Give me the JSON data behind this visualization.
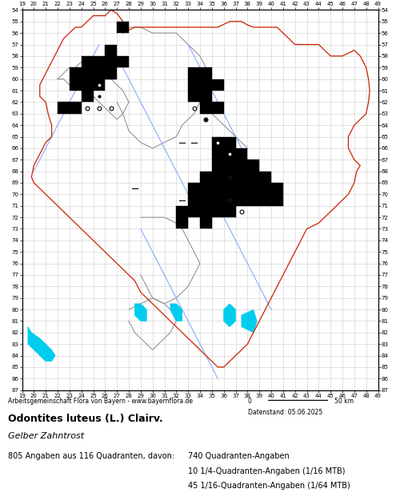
{
  "title_species": "Odontites luteus (L.) Clairv.",
  "title_german": "Gelber Zahntrost",
  "subtitle": "Arbeitsgemeinschaft Flora von Bayern - www.bayernflora.de",
  "date_label": "Datenstand: 05.06.2025",
  "stats_line": "805 Angaben aus 116 Quadranten, davon:",
  "stats_detail": [
    "740 Quadranten-Angaben",
    "10 1/4-Quadranten-Angaben (1/16 MTB)",
    "45 1/16-Quadranten-Angaben (1/64 MTB)"
  ],
  "x_ticks": [
    19,
    20,
    21,
    22,
    23,
    24,
    25,
    26,
    27,
    28,
    29,
    30,
    31,
    32,
    33,
    34,
    35,
    36,
    37,
    38,
    39,
    40,
    41,
    42,
    43,
    44,
    45,
    46,
    47,
    48,
    49
  ],
  "y_ticks": [
    54,
    55,
    56,
    57,
    58,
    59,
    60,
    61,
    62,
    63,
    64,
    65,
    66,
    67,
    68,
    69,
    70,
    71,
    72,
    73,
    74,
    75,
    76,
    77,
    78,
    79,
    80,
    81,
    82,
    83,
    84,
    85,
    86,
    87
  ],
  "xlim": [
    19,
    49
  ],
  "ylim": [
    54,
    87
  ],
  "filled_squares": [
    [
      27,
      55
    ],
    [
      26,
      57
    ],
    [
      24,
      58
    ],
    [
      25,
      58
    ],
    [
      26,
      58
    ],
    [
      27,
      58
    ],
    [
      23,
      59
    ],
    [
      24,
      59
    ],
    [
      25,
      59
    ],
    [
      26,
      59
    ],
    [
      23,
      60
    ],
    [
      24,
      60
    ],
    [
      25,
      60
    ],
    [
      24,
      61
    ],
    [
      22,
      62
    ],
    [
      23,
      62
    ],
    [
      33,
      59
    ],
    [
      34,
      59
    ],
    [
      33,
      60
    ],
    [
      34,
      60
    ],
    [
      35,
      60
    ],
    [
      33,
      61
    ],
    [
      34,
      61
    ],
    [
      34,
      62
    ],
    [
      35,
      62
    ],
    [
      35,
      65
    ],
    [
      36,
      65
    ],
    [
      35,
      66
    ],
    [
      36,
      66
    ],
    [
      37,
      66
    ],
    [
      35,
      67
    ],
    [
      36,
      67
    ],
    [
      37,
      67
    ],
    [
      38,
      67
    ],
    [
      34,
      68
    ],
    [
      35,
      68
    ],
    [
      36,
      68
    ],
    [
      37,
      68
    ],
    [
      38,
      68
    ],
    [
      39,
      68
    ],
    [
      33,
      69
    ],
    [
      34,
      69
    ],
    [
      35,
      69
    ],
    [
      36,
      69
    ],
    [
      37,
      69
    ],
    [
      38,
      69
    ],
    [
      39,
      69
    ],
    [
      40,
      69
    ],
    [
      33,
      70
    ],
    [
      34,
      70
    ],
    [
      35,
      70
    ],
    [
      36,
      70
    ],
    [
      37,
      70
    ],
    [
      38,
      70
    ],
    [
      39,
      70
    ],
    [
      40,
      70
    ],
    [
      32,
      71
    ],
    [
      33,
      71
    ],
    [
      34,
      71
    ],
    [
      35,
      71
    ],
    [
      36,
      71
    ],
    [
      32,
      72
    ],
    [
      34,
      72
    ]
  ],
  "open_circles": [
    [
      25,
      60
    ],
    [
      24,
      62
    ],
    [
      25,
      62
    ],
    [
      26,
      62
    ],
    [
      33,
      62
    ],
    [
      34,
      63
    ],
    [
      35,
      65
    ],
    [
      36,
      66
    ],
    [
      36,
      68
    ],
    [
      36,
      70
    ],
    [
      37,
      71
    ]
  ],
  "filled_circles": [
    [
      25,
      61
    ],
    [
      34,
      63
    ],
    [
      35,
      66
    ],
    [
      37,
      66
    ],
    [
      36,
      68
    ],
    [
      33,
      70
    ],
    [
      36,
      70
    ],
    [
      33,
      71
    ],
    [
      35,
      71
    ],
    [
      32,
      72
    ]
  ],
  "dash_marks": [
    [
      32,
      65
    ],
    [
      33,
      65
    ],
    [
      28,
      69
    ],
    [
      32,
      70
    ]
  ],
  "bavaria_outer": {
    "x": [
      26.0,
      26.5,
      27.0,
      27.5,
      27.0,
      27.5,
      28.5,
      29.5,
      30.5,
      31.5,
      32.0,
      33.0,
      34.0,
      35.5,
      36.5,
      37.5,
      38.0,
      38.5,
      39.0,
      39.5,
      40.5,
      41.0,
      41.5,
      42.0,
      43.0,
      44.0,
      44.5,
      45.0,
      46.0,
      47.0,
      47.5,
      48.0,
      48.2,
      48.3,
      48.2,
      48.0,
      47.5,
      47.0,
      46.5,
      46.5,
      47.0,
      47.5,
      47.2,
      47.0,
      46.5,
      45.5,
      44.5,
      44.0,
      43.0,
      42.5,
      42.0,
      41.5,
      41.0,
      40.5,
      40.0,
      39.5,
      39.0,
      38.5,
      38.0,
      37.5,
      37.0,
      36.5,
      36.0,
      35.5,
      35.0,
      34.5,
      34.0,
      33.5,
      33.0,
      32.5,
      32.0,
      31.5,
      31.0,
      30.5,
      30.0,
      29.5,
      29.0,
      28.5,
      28.0,
      27.5,
      27.0,
      26.5,
      26.0,
      25.5,
      25.0,
      24.5,
      24.0,
      23.5,
      23.0,
      22.5,
      22.0,
      21.5,
      21.0,
      20.5,
      20.0,
      19.8,
      20.0,
      20.5,
      21.0,
      21.5,
      21.5,
      21.2,
      21.0,
      20.5,
      20.5,
      21.0,
      21.5,
      22.0,
      22.5,
      23.0,
      23.5,
      24.0,
      24.5,
      25.0,
      25.5,
      26.0
    ],
    "y": [
      54.5,
      54.0,
      54.3,
      55.0,
      55.5,
      56.0,
      55.5,
      55.5,
      55.5,
      55.5,
      55.5,
      55.5,
      55.5,
      55.5,
      55.0,
      55.0,
      55.3,
      55.5,
      55.5,
      55.5,
      55.5,
      56.0,
      56.5,
      57.0,
      57.0,
      57.0,
      57.5,
      58.0,
      58.0,
      57.5,
      58.0,
      59.0,
      60.0,
      61.0,
      62.0,
      63.0,
      63.5,
      64.0,
      65.0,
      66.0,
      67.0,
      67.5,
      68.0,
      69.0,
      70.0,
      71.0,
      72.0,
      72.5,
      73.0,
      74.0,
      75.0,
      76.0,
      77.0,
      78.0,
      79.0,
      80.0,
      81.0,
      82.0,
      83.0,
      83.5,
      84.0,
      84.5,
      85.0,
      85.0,
      84.5,
      84.0,
      83.5,
      83.0,
      82.5,
      82.0,
      81.5,
      81.0,
      80.5,
      80.0,
      79.5,
      79.0,
      78.5,
      77.5,
      77.0,
      76.5,
      76.0,
      75.5,
      75.0,
      74.5,
      74.0,
      73.5,
      73.0,
      72.5,
      72.0,
      71.5,
      71.0,
      70.5,
      70.0,
      69.5,
      69.0,
      68.5,
      67.5,
      66.5,
      65.5,
      65.0,
      64.0,
      63.0,
      62.0,
      61.5,
      60.5,
      59.5,
      58.5,
      57.5,
      56.5,
      56.0,
      55.5,
      55.5,
      55.0,
      54.5,
      54.5,
      54.5
    ]
  },
  "bavaria_inner": {
    "districts": [
      {
        "x": [
          22.0,
          22.5,
          23.0,
          23.5,
          24.0,
          24.5,
          25.0,
          25.5,
          26.0,
          26.5,
          27.0,
          27.5,
          28.0,
          27.5,
          27.0,
          26.5,
          26.0,
          25.5,
          25.0,
          24.5,
          24.0,
          23.5,
          23.0,
          22.5,
          22.0
        ],
        "y": [
          60.0,
          59.5,
          59.0,
          59.0,
          58.5,
          58.5,
          59.0,
          59.5,
          59.5,
          60.0,
          60.5,
          61.0,
          62.0,
          63.0,
          63.5,
          63.0,
          62.5,
          62.0,
          61.5,
          61.0,
          60.5,
          61.0,
          60.5,
          60.0,
          60.0
        ]
      },
      {
        "x": [
          27.0,
          27.5,
          28.0,
          29.0,
          30.0,
          31.0,
          32.0,
          32.5,
          33.0,
          33.5,
          34.0,
          34.5,
          35.0,
          34.5,
          34.0,
          33.5,
          33.0,
          32.5,
          32.0,
          31.0,
          30.0,
          29.0,
          28.0,
          27.5,
          27.0
        ],
        "y": [
          56.0,
          55.5,
          55.5,
          55.5,
          56.0,
          56.0,
          56.0,
          56.5,
          57.0,
          57.5,
          58.0,
          59.0,
          60.0,
          61.0,
          62.0,
          63.0,
          63.5,
          64.0,
          65.0,
          65.5,
          66.0,
          65.5,
          64.5,
          63.0,
          62.0
        ]
      },
      {
        "x": [
          34.0,
          34.5,
          35.0,
          35.5,
          36.0,
          36.5,
          37.0,
          37.5,
          38.0,
          37.5,
          37.0,
          36.5,
          36.0,
          35.5,
          35.0,
          34.5,
          34.0
        ],
        "y": [
          63.0,
          63.0,
          63.0,
          63.5,
          64.0,
          64.5,
          65.0,
          65.5,
          66.0,
          67.0,
          68.0,
          69.0,
          70.0,
          71.0,
          72.0,
          71.5,
          70.0
        ]
      },
      {
        "x": [
          29.0,
          30.0,
          31.0,
          32.0,
          32.5,
          33.0,
          33.5,
          34.0,
          33.5,
          33.0,
          32.0,
          31.0,
          30.0,
          29.5,
          29.0
        ],
        "y": [
          72.0,
          72.0,
          72.0,
          72.5,
          73.0,
          74.0,
          75.0,
          76.0,
          77.0,
          78.0,
          79.0,
          79.5,
          79.0,
          78.0,
          77.0
        ]
      },
      {
        "x": [
          28.0,
          29.0,
          30.0,
          31.0,
          31.5,
          32.0,
          31.5,
          31.0,
          30.5,
          30.0,
          29.5,
          29.0,
          28.5,
          28.0
        ],
        "y": [
          80.0,
          79.5,
          79.0,
          79.5,
          80.0,
          81.0,
          82.0,
          82.5,
          83.0,
          83.5,
          83.0,
          82.5,
          82.0,
          81.0
        ]
      }
    ]
  },
  "rivers": [
    {
      "x": [
        25.5,
        25.0,
        24.5,
        24.0,
        23.5,
        23.0,
        22.5,
        22.0,
        21.5,
        21.0,
        20.5,
        20.0
      ],
      "y": [
        57.0,
        58.0,
        59.0,
        60.0,
        61.0,
        62.0,
        63.0,
        64.0,
        65.0,
        66.0,
        67.0,
        68.0
      ]
    },
    {
      "x": [
        26.5,
        27.0,
        27.5,
        28.0,
        28.5,
        29.0,
        29.5,
        30.0,
        30.5,
        31.0,
        31.5,
        32.0,
        32.5,
        33.0
      ],
      "y": [
        57.5,
        58.0,
        59.0,
        60.0,
        61.0,
        62.0,
        63.0,
        64.0,
        65.0,
        66.0,
        67.0,
        68.0,
        69.0,
        70.0
      ]
    },
    {
      "x": [
        33.0,
        33.5,
        34.0,
        34.5,
        35.0,
        35.5,
        36.0,
        36.5,
        37.0,
        37.5,
        38.0,
        38.5,
        39.0
      ],
      "y": [
        57.0,
        58.0,
        59.0,
        60.0,
        61.0,
        62.0,
        63.0,
        64.0,
        65.0,
        66.0,
        67.0,
        68.0,
        69.0
      ]
    },
    {
      "x": [
        29.0,
        29.5,
        30.0,
        30.5,
        31.0,
        31.5,
        32.0,
        32.5,
        33.0,
        33.5,
        34.0,
        34.5,
        35.0,
        35.5
      ],
      "y": [
        73.0,
        74.0,
        75.0,
        76.0,
        77.0,
        78.0,
        79.0,
        80.0,
        81.0,
        82.0,
        83.0,
        84.0,
        85.0,
        86.0
      ]
    },
    {
      "x": [
        36.0,
        36.5,
        37.0,
        37.5,
        38.0,
        38.5,
        39.0,
        39.5,
        40.0
      ],
      "y": [
        72.0,
        73.0,
        74.0,
        75.0,
        76.0,
        77.0,
        78.0,
        79.0,
        80.0
      ]
    }
  ],
  "lakes": [
    {
      "x": [
        19.5,
        19.8,
        20.5,
        21.0,
        21.5,
        21.8,
        21.5,
        21.0,
        20.5,
        20.0,
        19.5
      ],
      "y": [
        81.5,
        82.0,
        82.5,
        83.0,
        83.5,
        84.0,
        84.5,
        84.5,
        84.0,
        83.5,
        83.0
      ]
    },
    {
      "x": [
        28.5,
        29.0,
        29.5,
        29.5,
        29.0,
        28.5
      ],
      "y": [
        79.5,
        79.5,
        80.0,
        81.0,
        81.0,
        80.5
      ]
    },
    {
      "x": [
        31.5,
        32.0,
        32.5,
        32.5,
        32.0,
        31.5
      ],
      "y": [
        79.5,
        79.5,
        80.0,
        81.0,
        81.0,
        80.0
      ]
    },
    {
      "x": [
        36.0,
        36.5,
        37.0,
        37.0,
        36.5,
        36.0
      ],
      "y": [
        80.0,
        79.5,
        80.0,
        81.0,
        81.5,
        81.0
      ]
    },
    {
      "x": [
        37.5,
        38.5,
        38.8,
        38.5,
        37.5
      ],
      "y": [
        80.5,
        80.0,
        81.0,
        82.0,
        81.5
      ]
    }
  ],
  "bavaria_outer_color": "#cc2200",
  "bavaria_inner_color": "#888888",
  "river_color": "#88aaff",
  "lake_color": "#00ccee",
  "grid_color": "#cccccc",
  "text_color": "#000000"
}
